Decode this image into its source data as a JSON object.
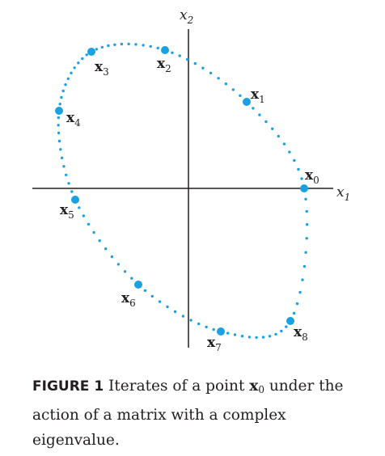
{
  "axes": {
    "x_label": "x",
    "x_sub": "1",
    "y_label": "x",
    "y_sub": "2"
  },
  "iterates": [
    {
      "name": "x",
      "sub": "0"
    },
    {
      "name": "x",
      "sub": "1"
    },
    {
      "name": "x",
      "sub": "2"
    },
    {
      "name": "x",
      "sub": "3"
    },
    {
      "name": "x",
      "sub": "4"
    },
    {
      "name": "x",
      "sub": "5"
    },
    {
      "name": "x",
      "sub": "6"
    },
    {
      "name": "x",
      "sub": "7"
    },
    {
      "name": "x",
      "sub": "8"
    }
  ],
  "colors": {
    "points": "#1ba1e2",
    "axes": "#231f20",
    "text": "#231f20"
  },
  "caption": {
    "label": "FIGURE 1",
    "text_before": "Iterates of a point",
    "var": "x",
    "var_sub": "0",
    "text_after": "under the action of a matrix with a complex eigenvalue."
  }
}
